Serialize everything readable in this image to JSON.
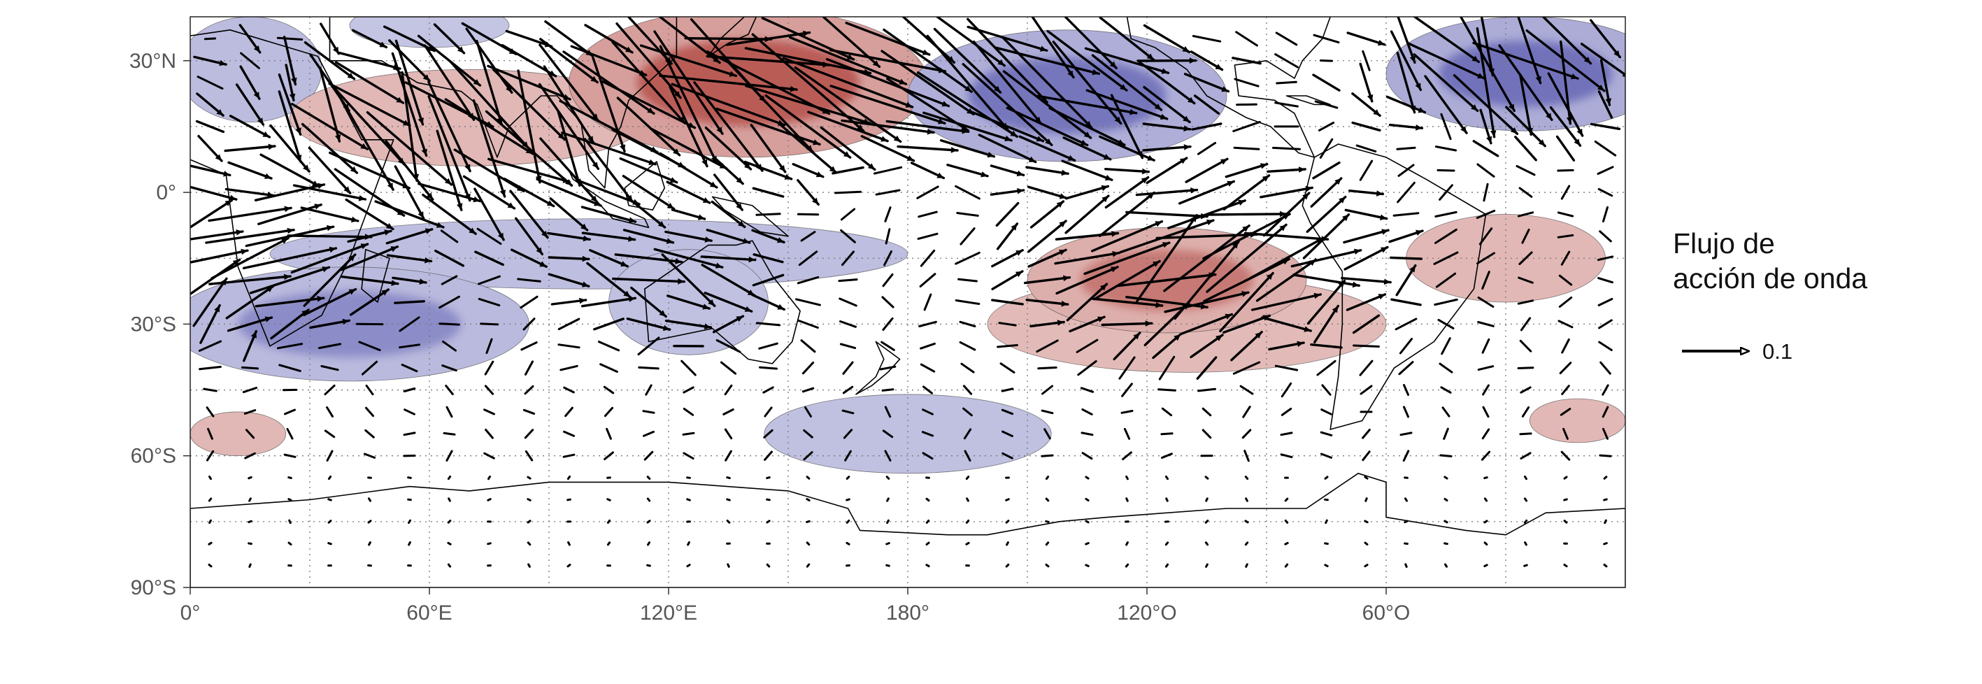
{
  "map": {
    "projection": "equirectangular",
    "lon_range": [
      0,
      360
    ],
    "lat_range": [
      -90,
      40
    ],
    "y_axis": {
      "ticks": [
        {
          "lat": 30,
          "label": "30°N"
        },
        {
          "lat": 0,
          "label": "0°"
        },
        {
          "lat": -30,
          "label": "30°S"
        },
        {
          "lat": -60,
          "label": "60°S"
        },
        {
          "lat": -90,
          "label": "90°S"
        }
      ]
    },
    "x_axis": {
      "ticks": [
        {
          "lon": 0,
          "label": "0°"
        },
        {
          "lon": 60,
          "label": "60°E"
        },
        {
          "lon": 120,
          "label": "120°E"
        },
        {
          "lon": 180,
          "label": "180°"
        },
        {
          "lon": 240,
          "label": "120°O"
        },
        {
          "lon": 300,
          "label": "60°O"
        }
      ]
    },
    "graticule": {
      "lon_step": 30,
      "lat_step": 15,
      "style": "dotted"
    },
    "colors": {
      "positive_anomaly": "#b0453f",
      "negative_anomaly": "#5a5ab0",
      "vectors": "#000000",
      "coastline": "#000000"
    },
    "shaded_regions": [
      {
        "sign": "negative",
        "intensity": 0.5,
        "lon_center": 15,
        "lat_center": 28,
        "lon_halfwidth": 18,
        "lat_halfwidth": 12
      },
      {
        "sign": "negative",
        "intensity": 0.3,
        "lon_center": 60,
        "lat_center": 38,
        "lon_halfwidth": 20,
        "lat_halfwidth": 5
      },
      {
        "sign": "positive",
        "intensity": 0.4,
        "lon_center": 70,
        "lat_center": 17,
        "lon_halfwidth": 45,
        "lat_halfwidth": 11
      },
      {
        "sign": "positive",
        "intensity": 0.95,
        "lon_center": 140,
        "lat_center": 25,
        "lon_halfwidth": 45,
        "lat_halfwidth": 17
      },
      {
        "sign": "negative",
        "intensity": 0.85,
        "lon_center": 220,
        "lat_center": 22,
        "lon_halfwidth": 40,
        "lat_halfwidth": 15
      },
      {
        "sign": "negative",
        "intensity": 0.9,
        "lon_center": 335,
        "lat_center": 27,
        "lon_halfwidth": 35,
        "lat_halfwidth": 13
      },
      {
        "sign": "negative",
        "intensity": 0.45,
        "lon_center": 100,
        "lat_center": -14,
        "lon_halfwidth": 80,
        "lat_halfwidth": 8
      },
      {
        "sign": "negative",
        "intensity": 0.55,
        "lon_center": 40,
        "lat_center": -30,
        "lon_halfwidth": 45,
        "lat_halfwidth": 13
      },
      {
        "sign": "negative",
        "intensity": 0.4,
        "lon_center": 125,
        "lat_center": -25,
        "lon_halfwidth": 20,
        "lat_halfwidth": 12
      },
      {
        "sign": "positive",
        "intensity": 0.35,
        "lon_center": 250,
        "lat_center": -30,
        "lon_halfwidth": 50,
        "lat_halfwidth": 11
      },
      {
        "sign": "positive",
        "intensity": 0.6,
        "lon_center": 245,
        "lat_center": -20,
        "lon_halfwidth": 35,
        "lat_halfwidth": 12
      },
      {
        "sign": "positive",
        "intensity": 0.4,
        "lon_center": 330,
        "lat_center": -15,
        "lon_halfwidth": 25,
        "lat_halfwidth": 10
      },
      {
        "sign": "positive",
        "intensity": 0.4,
        "lon_center": 12,
        "lat_center": -55,
        "lon_halfwidth": 12,
        "lat_halfwidth": 5
      },
      {
        "sign": "positive",
        "intensity": 0.4,
        "lon_center": 348,
        "lat_center": -52,
        "lon_halfwidth": 12,
        "lat_halfwidth": 5
      },
      {
        "sign": "negative",
        "intensity": 0.4,
        "lon_center": 180,
        "lat_center": -55,
        "lon_halfwidth": 36,
        "lat_halfwidth": 9
      }
    ],
    "flux_jets": [
      {
        "lon_center": 70,
        "lat_center": 15,
        "lon_halfwidth": 65,
        "lat_halfwidth": 24,
        "strength": 1.0,
        "direction_deg": -55
      },
      {
        "lon_center": 150,
        "lat_center": 25,
        "lon_halfwidth": 45,
        "lat_halfwidth": 17,
        "strength": 1.1,
        "direction_deg": -30
      },
      {
        "lon_center": 215,
        "lat_center": 25,
        "lon_halfwidth": 40,
        "lat_halfwidth": 18,
        "strength": 1.0,
        "direction_deg": -40
      },
      {
        "lon_center": 330,
        "lat_center": 28,
        "lon_halfwidth": 35,
        "lat_halfwidth": 15,
        "strength": 1.0,
        "direction_deg": -60
      },
      {
        "lon_center": 255,
        "lat_center": -15,
        "lon_halfwidth": 45,
        "lat_halfwidth": 20,
        "strength": 0.9,
        "direction_deg": 25
      },
      {
        "lon_center": 20,
        "lat_center": -15,
        "lon_halfwidth": 35,
        "lat_halfwidth": 18,
        "strength": 0.75,
        "direction_deg": 30
      },
      {
        "lon_center": 120,
        "lat_center": -20,
        "lon_halfwidth": 30,
        "lat_halfwidth": 14,
        "strength": 0.55,
        "direction_deg": -20
      }
    ],
    "continents": [
      {
        "name": "africa",
        "outline": [
          [
            -5,
            35
          ],
          [
            10,
            37
          ],
          [
            32,
            31
          ],
          [
            43,
            12
          ],
          [
            51,
            12
          ],
          [
            40,
            -15
          ],
          [
            33,
            -28
          ],
          [
            20,
            -35
          ],
          [
            12,
            -17
          ],
          [
            9,
            4
          ],
          [
            -17,
            14
          ],
          [
            -16,
            28
          ],
          [
            -5,
            35
          ]
        ]
      },
      {
        "name": "madagascar",
        "outline": [
          [
            44,
            -13
          ],
          [
            50,
            -15
          ],
          [
            47,
            -25
          ],
          [
            43,
            -22
          ],
          [
            44,
            -13
          ]
        ]
      },
      {
        "name": "arabia-india",
        "outline": [
          [
            35,
            30
          ],
          [
            48,
            30
          ],
          [
            57,
            25
          ],
          [
            68,
            23
          ],
          [
            72,
            20
          ],
          [
            77,
            8
          ],
          [
            80,
            15
          ],
          [
            88,
            22
          ],
          [
            92,
            22
          ],
          [
            98,
            16
          ],
          [
            100,
            5
          ],
          [
            104,
            1
          ],
          [
            105,
            10
          ],
          [
            108,
            15
          ],
          [
            110,
            21
          ],
          [
            122,
            31
          ],
          [
            122,
            40
          ],
          [
            35,
            40
          ],
          [
            35,
            30
          ]
        ]
      },
      {
        "name": "sumatra-java",
        "outline": [
          [
            95,
            5
          ],
          [
            106,
            -6
          ],
          [
            115,
            -8
          ],
          [
            114,
            -6
          ],
          [
            104,
            -2
          ],
          [
            96,
            3
          ],
          [
            95,
            5
          ]
        ]
      },
      {
        "name": "borneo",
        "outline": [
          [
            109,
            1
          ],
          [
            117,
            7
          ],
          [
            119,
            1
          ],
          [
            116,
            -4
          ],
          [
            110,
            -3
          ],
          [
            109,
            1
          ]
        ]
      },
      {
        "name": "new-guinea",
        "outline": [
          [
            131,
            -1
          ],
          [
            141,
            -3
          ],
          [
            150,
            -10
          ],
          [
            143,
            -9
          ],
          [
            134,
            -4
          ],
          [
            131,
            -1
          ]
        ]
      },
      {
        "name": "australia",
        "outline": [
          [
            114,
            -22
          ],
          [
            122,
            -17
          ],
          [
            130,
            -12
          ],
          [
            137,
            -12
          ],
          [
            141,
            -11
          ],
          [
            146,
            -19
          ],
          [
            153,
            -27
          ],
          [
            151,
            -34
          ],
          [
            146,
            -39
          ],
          [
            140,
            -38
          ],
          [
            131,
            -31
          ],
          [
            115,
            -34
          ],
          [
            114,
            -22
          ]
        ]
      },
      {
        "name": "new-zealand",
        "outline": [
          [
            172,
            -34
          ],
          [
            178,
            -38
          ],
          [
            175,
            -41
          ],
          [
            171,
            -44
          ],
          [
            167,
            -46
          ],
          [
            172,
            -42
          ],
          [
            174,
            -38
          ],
          [
            172,
            -34
          ]
        ]
      },
      {
        "name": "japan",
        "outline": [
          [
            130,
            31
          ],
          [
            135,
            34
          ],
          [
            140,
            36
          ],
          [
            142,
            40
          ],
          [
            139,
            40
          ],
          [
            133,
            35
          ],
          [
            130,
            31
          ]
        ]
      },
      {
        "name": "north-america",
        "outline": [
          [
            235,
            40
          ],
          [
            236,
            35
          ],
          [
            242,
            33
          ],
          [
            250,
            28
          ],
          [
            255,
            22
          ],
          [
            265,
            17
          ],
          [
            271,
            15
          ],
          [
            278,
            9
          ],
          [
            282,
            8
          ],
          [
            277,
            18
          ],
          [
            272,
            21
          ],
          [
            263,
            22
          ],
          [
            262,
            29
          ],
          [
            270,
            30
          ],
          [
            277,
            26
          ],
          [
            279,
            30
          ],
          [
            284,
            35
          ],
          [
            286,
            40
          ],
          [
            235,
            40
          ]
        ]
      },
      {
        "name": "south-america",
        "outline": [
          [
            282,
            8
          ],
          [
            288,
            11
          ],
          [
            300,
            8
          ],
          [
            310,
            3
          ],
          [
            325,
            -5
          ],
          [
            322,
            -22
          ],
          [
            312,
            -34
          ],
          [
            302,
            -40
          ],
          [
            294,
            -52
          ],
          [
            286,
            -54
          ],
          [
            288,
            -42
          ],
          [
            289,
            -30
          ],
          [
            289,
            -18
          ],
          [
            281,
            -7
          ],
          [
            279,
            -3
          ],
          [
            282,
            8
          ]
        ]
      },
      {
        "name": "cuba",
        "outline": [
          [
            275,
            22
          ],
          [
            282,
            20
          ],
          [
            286,
            20
          ],
          [
            280,
            22
          ],
          [
            275,
            22
          ]
        ]
      },
      {
        "name": "antarctica",
        "outline": [
          [
            0,
            -72
          ],
          [
            30,
            -70
          ],
          [
            55,
            -67
          ],
          [
            70,
            -68
          ],
          [
            90,
            -66
          ],
          [
            120,
            -66
          ],
          [
            150,
            -68
          ],
          [
            165,
            -72
          ],
          [
            168,
            -77
          ],
          [
            190,
            -78
          ],
          [
            200,
            -78
          ],
          [
            218,
            -75
          ],
          [
            230,
            -74
          ],
          [
            260,
            -72
          ],
          [
            280,
            -72
          ],
          [
            293,
            -64
          ],
          [
            300,
            -66
          ],
          [
            300,
            -74
          ],
          [
            320,
            -77
          ],
          [
            330,
            -78
          ],
          [
            340,
            -73
          ],
          [
            360,
            -72
          ],
          [
            360,
            -90
          ],
          [
            0,
            -90
          ],
          [
            0,
            -72
          ]
        ]
      }
    ],
    "legend": {
      "title_lines": [
        "Flujo de",
        "acción de onda"
      ],
      "reference_value": "0.1"
    }
  }
}
